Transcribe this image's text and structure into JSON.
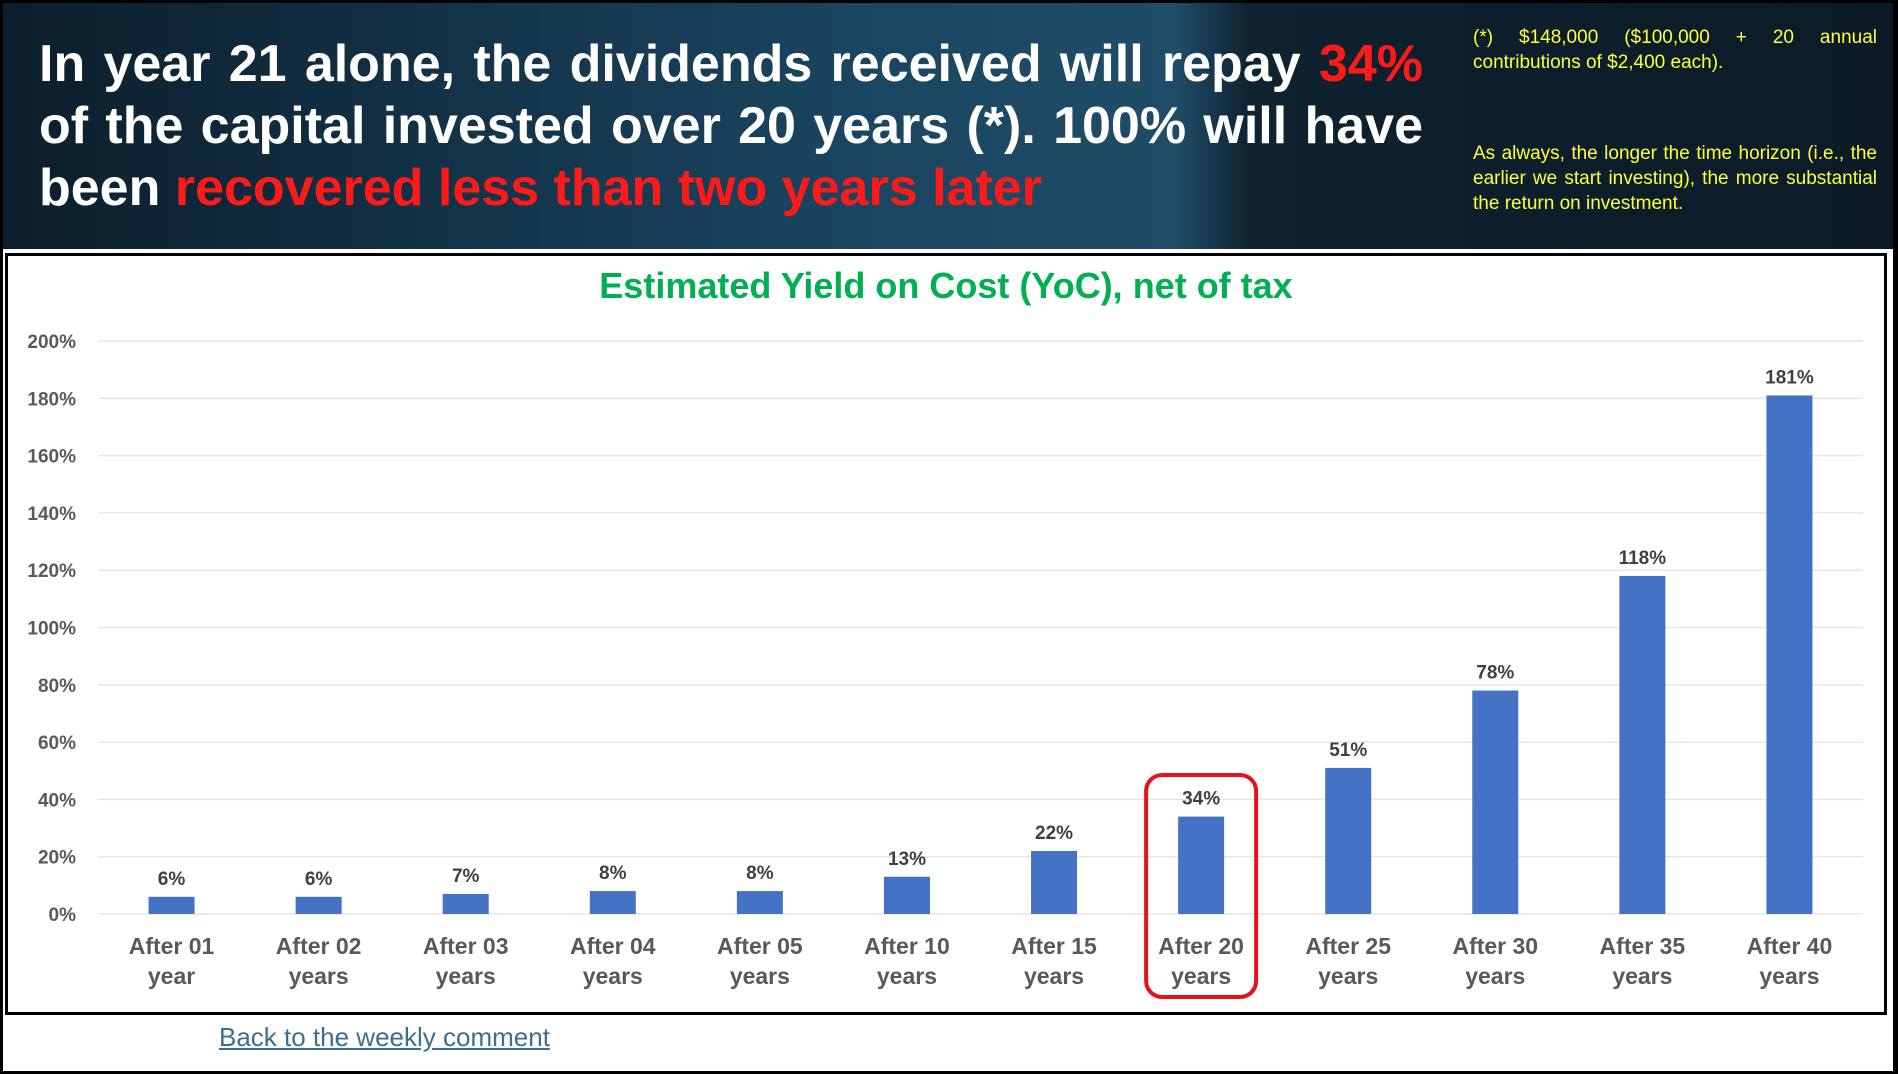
{
  "banner": {
    "headline_pre": "In year 21 alone, the dividends received will repay ",
    "headline_highlight": "34%",
    "headline_mid": " of the capital invested over 20 years (*). 100% will have been ",
    "headline_red": "recovered less than two years later",
    "note_1": "(*) $148,000 ($100,000 + 20 annual contributions of $2,400 each).",
    "note_2": "As always, the longer the time horizon (i.e., the earlier we start investing), the more substantial the return on investment."
  },
  "chart_data": {
    "type": "bar",
    "title": "Estimated Yield on Cost (YoC), net of tax",
    "xlabel": "",
    "ylabel": "",
    "categories": [
      [
        "After 01",
        "year"
      ],
      [
        "After 02",
        "years"
      ],
      [
        "After 03",
        "years"
      ],
      [
        "After 04",
        "years"
      ],
      [
        "After 05",
        "years"
      ],
      [
        "After 10",
        "years"
      ],
      [
        "After 15",
        "years"
      ],
      [
        "After 20",
        "years"
      ],
      [
        "After 25",
        "years"
      ],
      [
        "After 30",
        "years"
      ],
      [
        "After 35",
        "years"
      ],
      [
        "After 40",
        "years"
      ]
    ],
    "values": [
      6,
      6,
      7,
      8,
      8,
      13,
      22,
      34,
      51,
      78,
      118,
      181
    ],
    "value_labels": [
      "6%",
      "6%",
      "7%",
      "8%",
      "8%",
      "13%",
      "22%",
      "34%",
      "51%",
      "78%",
      "118%",
      "181%"
    ],
    "ylim": [
      0,
      200
    ],
    "yticks": [
      0,
      20,
      40,
      60,
      80,
      100,
      120,
      140,
      160,
      180,
      200
    ],
    "ytick_labels": [
      "0%",
      "20%",
      "40%",
      "60%",
      "80%",
      "100%",
      "120%",
      "140%",
      "160%",
      "180%",
      "200%"
    ],
    "highlighted_index": 7,
    "grid": true,
    "colors": {
      "bar": "#4472c4",
      "title": "#00b050",
      "highlight": "#e8101a",
      "grid": "#e6e6e6"
    }
  },
  "footer": {
    "back_link": "Back to the weekly comment"
  }
}
